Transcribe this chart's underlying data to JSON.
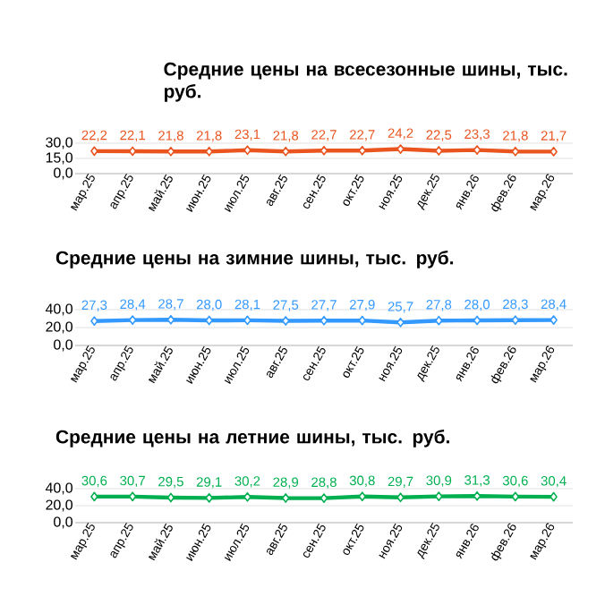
{
  "chart_data": [
    {
      "type": "line",
      "title": "Средние цены на всесезонные шины, тыс. руб.",
      "categories": [
        "мар.25",
        "апр.25",
        "май.25",
        "июн.25",
        "июл.25",
        "авг.25",
        "сен.25",
        "окт.25",
        "ноя.25",
        "дек.25",
        "янв.26",
        "фев.26",
        "мар.26"
      ],
      "values": [
        22.2,
        22.1,
        21.8,
        21.8,
        23.1,
        21.8,
        22.7,
        22.7,
        24.2,
        22.5,
        23.3,
        21.8,
        21.7
      ],
      "value_labels": [
        "22,2",
        "22,1",
        "21,8",
        "21,8",
        "23,1",
        "21,8",
        "22,7",
        "22,7",
        "24,2",
        "22,5",
        "23,3",
        "21,8",
        "21,7"
      ],
      "color": "#e9541f",
      "ylim": [
        0,
        30
      ],
      "yticks": [
        {
          "value": 0,
          "label": "0,0"
        },
        {
          "value": 15,
          "label": "15,0"
        },
        {
          "value": 30,
          "label": "30,0"
        }
      ],
      "grid": "y",
      "marker": "diamond",
      "legend": false
    },
    {
      "type": "line",
      "title": "Средние цены на зимние шины, тыс. руб.",
      "categories": [
        "мар.25",
        "апр.25",
        "май.25",
        "июн.25",
        "июл.25",
        "авг.25",
        "сен.25",
        "окт.25",
        "ноя.25",
        "дек.25",
        "янв.26",
        "фев.26",
        "мар.26"
      ],
      "values": [
        27.3,
        28.4,
        28.7,
        28.0,
        28.1,
        27.5,
        27.7,
        27.9,
        25.7,
        27.8,
        28.0,
        28.3,
        28.4
      ],
      "value_labels": [
        "27,3",
        "28,4",
        "28,7",
        "28,0",
        "28,1",
        "27,5",
        "27,7",
        "27,9",
        "25,7",
        "27,8",
        "28,0",
        "28,3",
        "28,4"
      ],
      "color": "#3399ff",
      "ylim": [
        0,
        40
      ],
      "yticks": [
        {
          "value": 0,
          "label": "0,0"
        },
        {
          "value": 20,
          "label": "20,0"
        },
        {
          "value": 40,
          "label": "40,0"
        }
      ],
      "grid": "y",
      "marker": "diamond",
      "legend": false
    },
    {
      "type": "line",
      "title": "Средние цены на летние шины, тыс. руб.",
      "categories": [
        "мар.25",
        "апр.25",
        "май.25",
        "июн.25",
        "июл.25",
        "авг.25",
        "сен.25",
        "окт.25",
        "ноя.25",
        "дек.25",
        "янв.26",
        "фев.26",
        "мар.26"
      ],
      "values": [
        30.6,
        30.7,
        29.5,
        29.1,
        30.2,
        28.9,
        28.8,
        30.8,
        29.7,
        30.9,
        31.3,
        30.6,
        30.4
      ],
      "value_labels": [
        "30,6",
        "30,7",
        "29,5",
        "29,1",
        "30,2",
        "28,9",
        "28,8",
        "30,8",
        "29,7",
        "30,9",
        "31,3",
        "30,6",
        "30,4"
      ],
      "color": "#00b050",
      "ylim": [
        0,
        40
      ],
      "yticks": [
        {
          "value": 0,
          "label": "0,0"
        },
        {
          "value": 20,
          "label": "20,0"
        },
        {
          "value": 40,
          "label": "40,0"
        }
      ],
      "grid": "y",
      "marker": "diamond",
      "legend": false
    }
  ]
}
